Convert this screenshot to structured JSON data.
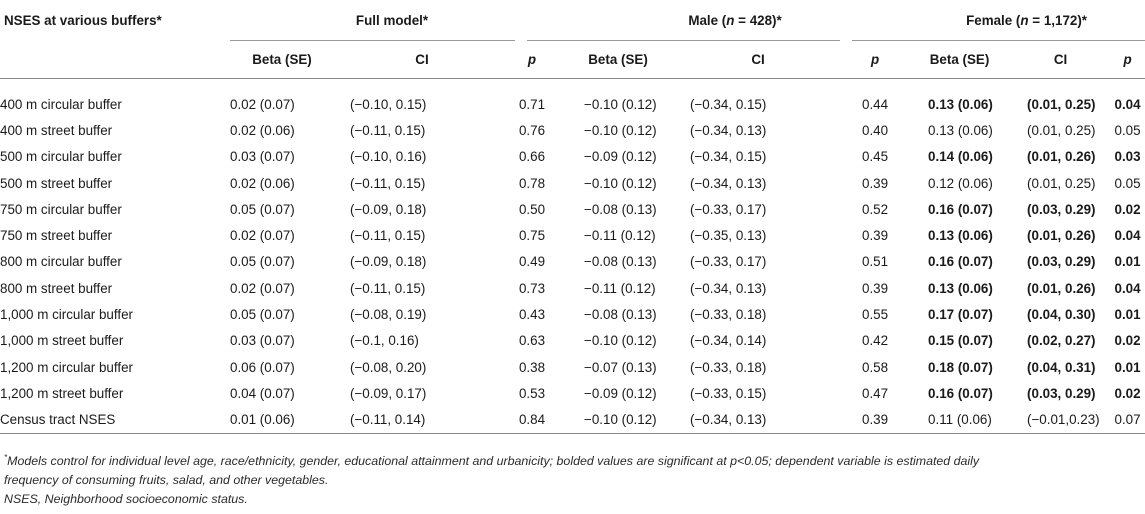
{
  "headers": {
    "first": "NSES at various buffers*",
    "groups": [
      {
        "label_pre": "Full model*",
        "n_italic": "",
        "label_post": ""
      },
      {
        "label_pre": "Male (",
        "n_italic": "n",
        "label_post": " = 428)*"
      },
      {
        "label_pre": "Female (",
        "n_italic": "n",
        "label_post": " = 1,172)*"
      }
    ],
    "sub": [
      "Beta (SE)",
      "CI",
      "p"
    ]
  },
  "rows": [
    {
      "label": "400 m circular buffer",
      "cells": [
        "0.02 (0.07)",
        "(−0.10, 0.15)",
        "0.71",
        "−0.10 (0.12)",
        "(−0.34, 0.15)",
        "0.44",
        "0.13 (0.06)",
        "(0.01, 0.25)",
        "0.04"
      ],
      "female_bold": true
    },
    {
      "label": "400 m street buffer",
      "cells": [
        "0.02 (0.06)",
        "(−0.11, 0.15)",
        "0.76",
        "−0.10 (0.12)",
        "(−0.34, 0.13)",
        "0.40",
        "0.13 (0.06)",
        "(0.01, 0.25)",
        "0.05"
      ],
      "female_bold": false
    },
    {
      "label": "500 m circular buffer",
      "cells": [
        "0.03 (0.07)",
        "(−0.10, 0.16)",
        "0.66",
        "−0.09 (0.12)",
        "(−0.34, 0.15)",
        "0.45",
        "0.14 (0.06)",
        "(0.01, 0.26)",
        "0.03"
      ],
      "female_bold": true
    },
    {
      "label": "500 m street buffer",
      "cells": [
        "0.02 (0.06)",
        "(−0.11, 0.15)",
        "0.78",
        "−0.10 (0.12)",
        "(−0.34, 0.13)",
        "0.39",
        "0.12 (0.06)",
        "(0.01, 0.25)",
        "0.05"
      ],
      "female_bold": false
    },
    {
      "label": "750 m circular buffer",
      "cells": [
        "0.05 (0.07)",
        "(−0.09, 0.18)",
        "0.50",
        "−0.08 (0.13)",
        "(−0.33, 0.17)",
        "0.52",
        "0.16 (0.07)",
        "(0.03, 0.29)",
        "0.02"
      ],
      "female_bold": true
    },
    {
      "label": "750 m street buffer",
      "cells": [
        "0.02 (0.07)",
        "(−0.11, 0.15)",
        "0.75",
        "−0.11 (0.12)",
        "(−0.35, 0.13)",
        "0.39",
        "0.13 (0.06)",
        "(0.01, 0.26)",
        "0.04"
      ],
      "female_bold": true
    },
    {
      "label": "800 m circular buffer",
      "cells": [
        "0.05 (0.07)",
        "(−0.09, 0.18)",
        "0.49",
        "−0.08 (0.13)",
        "(−0.33, 0.17)",
        "0.51",
        "0.16 (0.07)",
        "(0.03, 0.29)",
        "0.01"
      ],
      "female_bold": true
    },
    {
      "label": "800 m street buffer",
      "cells": [
        "0.02 (0.07)",
        "(−0.11, 0.15)",
        "0.73",
        "−0.11 (0.12)",
        "(−0.34, 0.13)",
        "0.39",
        "0.13 (0.06)",
        "(0.01, 0.26)",
        "0.04"
      ],
      "female_bold": true
    },
    {
      "label": "1,000 m circular buffer",
      "cells": [
        "0.05 (0.07)",
        "(−0.08, 0.19)",
        "0.43",
        "−0.08 (0.13)",
        "(−0.33, 0.18)",
        "0.55",
        "0.17 (0.07)",
        "(0.04, 0.30)",
        "0.01"
      ],
      "female_bold": true
    },
    {
      "label": "1,000 m street buffer",
      "cells": [
        "0.03 (0.07)",
        "(−0.1, 0.16)",
        "0.63",
        "−0.10 (0.12)",
        "(−0.34, 0.14)",
        "0.42",
        "0.15 (0.07)",
        "(0.02, 0.27)",
        "0.02"
      ],
      "female_bold": true
    },
    {
      "label": "1,200 m circular buffer",
      "cells": [
        "0.06 (0.07)",
        "(−0.08, 0.20)",
        "0.38",
        "−0.07 (0.13)",
        "(−0.33, 0.18)",
        "0.58",
        "0.18 (0.07)",
        "(0.04, 0.31)",
        "0.01"
      ],
      "female_bold": true
    },
    {
      "label": "1,200 m street buffer",
      "cells": [
        "0.04 (0.07)",
        "(−0.09, 0.17)",
        "0.53",
        "−0.09 (0.12)",
        "(−0.33, 0.15)",
        "0.47",
        "0.16 (0.07)",
        "(0.03, 0.29)",
        "0.02"
      ],
      "female_bold": true
    },
    {
      "label": "Census tract NSES",
      "cells": [
        "0.01 (0.06)",
        "(−0.11, 0.14)",
        "0.84",
        "−0.10 (0.12)",
        "(−0.34, 0.13)",
        "0.39",
        "0.11 (0.06)",
        "(−0.01,0.23)",
        "0.07"
      ],
      "female_bold": false
    }
  ],
  "notes": {
    "marker": "*",
    "line1": "Models control for individual level age, race/ethnicity, gender, educational attainment and urbanicity; bolded values are significant at p<0.05; dependent variable is estimated daily",
    "line2": "frequency of consuming fruits, salad, and other vegetables.",
    "line3": "NSES, Neighborhood socioeconomic status."
  }
}
